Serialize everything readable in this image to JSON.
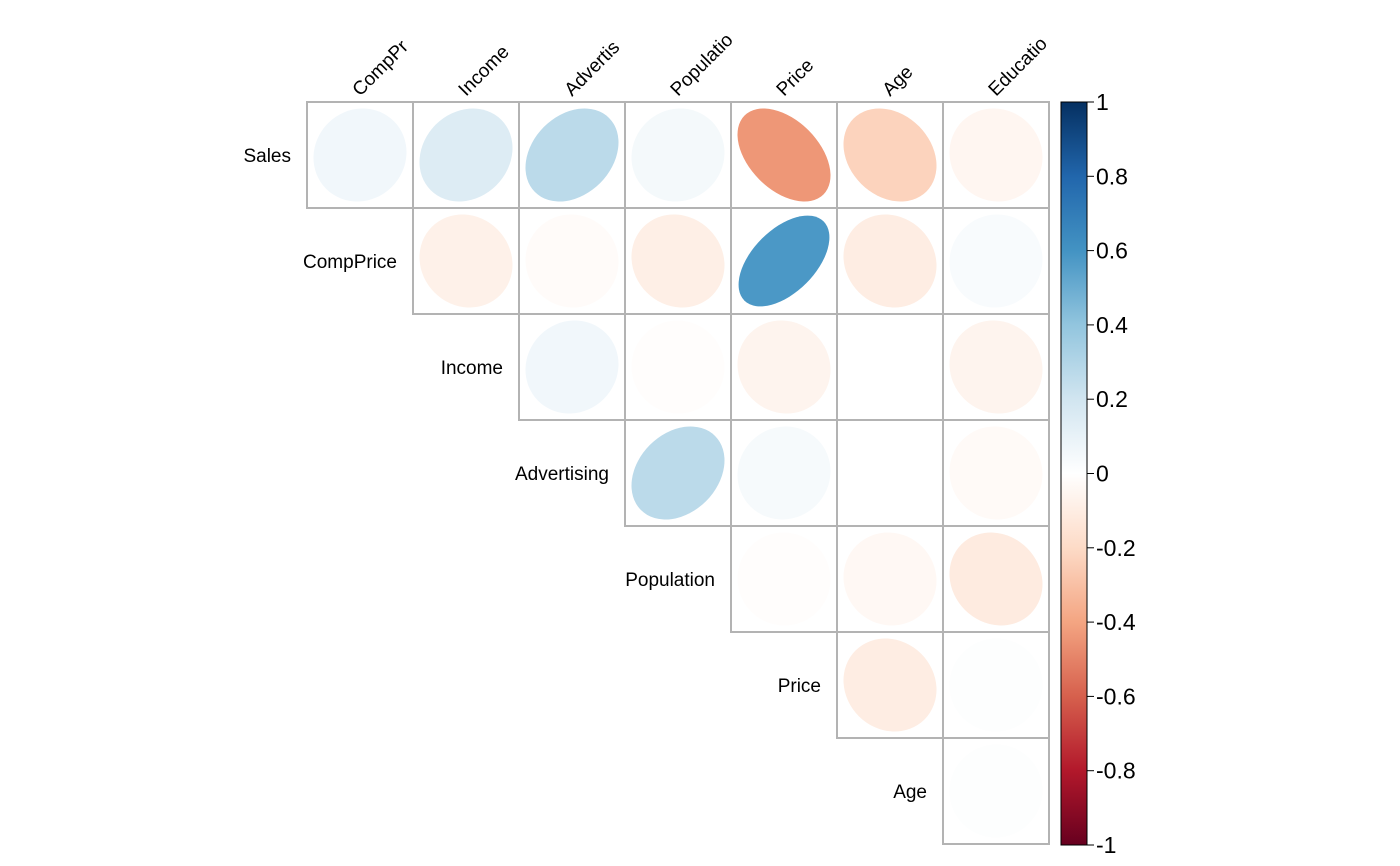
{
  "chart_data": {
    "type": "heatmap",
    "subtype": "correlation-ellipse-upper",
    "row_labels": [
      "Sales",
      "CompPrice",
      "Income",
      "Advertising",
      "Population",
      "Price",
      "Age"
    ],
    "col_labels": [
      "CompPrice",
      "Income",
      "Advertising",
      "Population",
      "Price",
      "Age",
      "Education"
    ],
    "col_labels_display": [
      "CompPr",
      "Income",
      "Advertis",
      "Populatio",
      "Price",
      "Age",
      "Educatio"
    ],
    "matrix": [
      [
        0.06,
        0.15,
        0.27,
        0.05,
        -0.44,
        -0.23,
        -0.05
      ],
      [
        null,
        -0.08,
        -0.02,
        -0.09,
        0.58,
        -0.1,
        0.03
      ],
      [
        null,
        null,
        0.06,
        -0.01,
        -0.06,
        0.0,
        -0.06
      ],
      [
        null,
        null,
        null,
        0.27,
        0.04,
        0.0,
        -0.03
      ],
      [
        null,
        null,
        null,
        null,
        -0.01,
        -0.04,
        -0.11
      ],
      [
        null,
        null,
        null,
        null,
        null,
        -0.1,
        0.01
      ],
      [
        null,
        null,
        null,
        null,
        null,
        null,
        0.01
      ]
    ],
    "colorbar": {
      "ticks": [
        1,
        0.8,
        0.6,
        0.4,
        0.2,
        0,
        -0.2,
        -0.4,
        -0.6,
        -0.8,
        -1
      ],
      "tick_labels": [
        "1",
        "0.8",
        "0.6",
        "0.4",
        "0.2",
        "0",
        "-0.2",
        "-0.4",
        "-0.6",
        "-0.8",
        "-1"
      ],
      "range": [
        -1,
        1
      ]
    },
    "colors": {
      "scale": [
        "#67001f",
        "#b2182b",
        "#d6604d",
        "#f4a582",
        "#fddbc7",
        "#ffffff",
        "#d1e5f0",
        "#92c5de",
        "#4393c3",
        "#2166ac",
        "#053061"
      ],
      "grid": "#b3b3b3"
    },
    "legend_position": "right"
  }
}
